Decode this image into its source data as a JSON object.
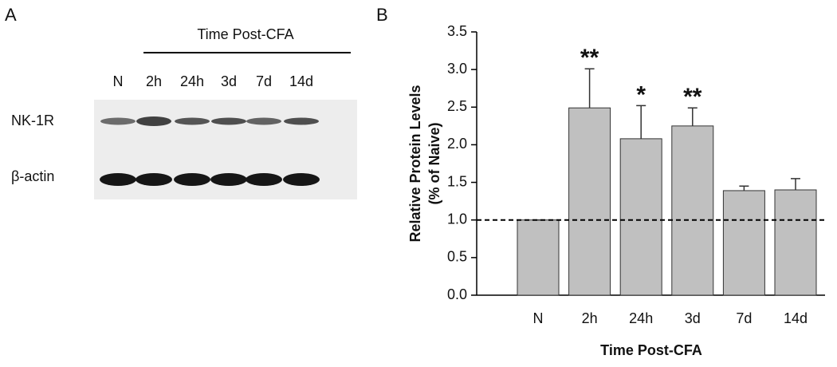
{
  "blot": {
    "panel_label": "A",
    "header": "Time Post-CFA",
    "lanes": [
      "N",
      "2h",
      "24h",
      "3d",
      "7d",
      "14d"
    ],
    "rows": [
      "NK-1R",
      "β-actin"
    ]
  },
  "chart_data": {
    "type": "bar",
    "panel_label": "B",
    "categories": [
      "N",
      "2h",
      "24h",
      "3d",
      "7d",
      "14d"
    ],
    "values": [
      1.0,
      2.49,
      2.08,
      2.25,
      1.39,
      1.4
    ],
    "errors": [
      0,
      0.52,
      0.44,
      0.24,
      0.06,
      0.15
    ],
    "annotations": [
      null,
      "**",
      "*",
      "**",
      null,
      null
    ],
    "color": "#c0c0c0",
    "reference_line": 1.0,
    "ylim": [
      0,
      3.5
    ],
    "yticks": [
      {
        "value": 0,
        "label": "0.0"
      },
      {
        "value": 0.5,
        "label": "0.5"
      },
      {
        "value": 1,
        "label": "1.0"
      },
      {
        "value": 1.5,
        "label": "1.5"
      },
      {
        "value": 2,
        "label": "2.0"
      },
      {
        "value": 2.5,
        "label": "2.5"
      },
      {
        "value": 3,
        "label": "3.0"
      },
      {
        "value": 3.5,
        "label": "3.5"
      }
    ],
    "xlabel": "Time Post-CFA",
    "ylabel": [
      "Relative Protein Levels",
      "(% of Naive)"
    ]
  }
}
